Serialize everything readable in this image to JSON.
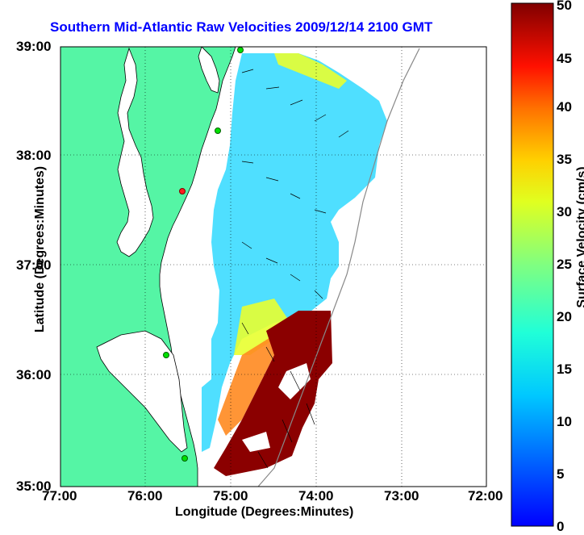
{
  "title": "Southern Mid-Atlantic Raw Velocities 2009/12/14 2100 GMT",
  "xlabel": "Longitude (Degrees:Minutes)",
  "ylabel": "Latitude (Degrees:Minutes)",
  "colorbar": {
    "label": "Surface Velocity (cm/s)",
    "range": [
      0,
      50
    ],
    "ticks": [
      "0",
      "5",
      "10",
      "15",
      "20",
      "25",
      "30",
      "35",
      "40",
      "45",
      "50"
    ],
    "colormap": "jet"
  },
  "map": {
    "x_ticks": [
      "77:00",
      "76:00",
      "75:00",
      "74:00",
      "73:00",
      "72:00"
    ],
    "y_ticks": [
      "39:00",
      "38:00",
      "37:00",
      "36:00",
      "35:00"
    ],
    "lon_range": [
      -77,
      -72
    ],
    "lat_range": [
      35,
      39
    ],
    "grid": "dotted",
    "land_color": "#55f5a5",
    "water_color": "#ffffff"
  },
  "stations": [
    {
      "color": "green"
    },
    {
      "color": "green"
    },
    {
      "color": "red"
    },
    {
      "color": "green"
    },
    {
      "color": "green"
    }
  ]
}
